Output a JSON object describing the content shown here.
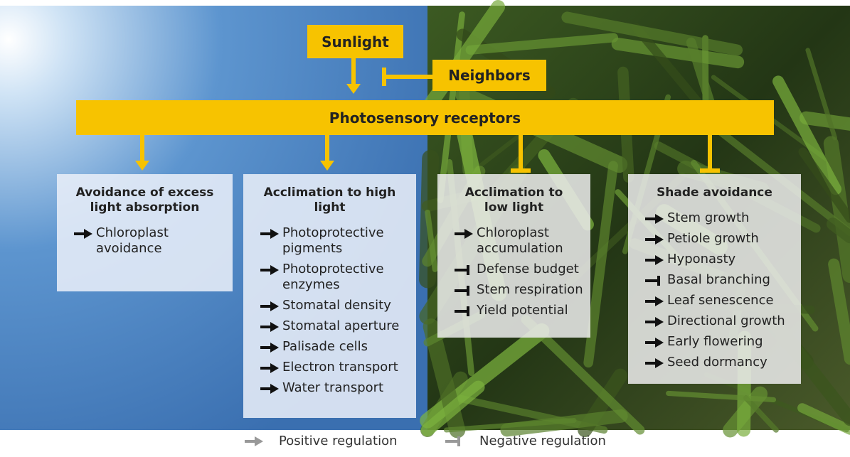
{
  "diagram": {
    "sources": [
      {
        "label": "Sunlight"
      },
      {
        "label": "Neighbors"
      }
    ],
    "receptors": {
      "label": "Photosensory receptors"
    },
    "boxes": [
      {
        "title": "Avoidance of excess light absorption",
        "regulation": 0,
        "items": [
          {
            "text": "Chloroplast avoidance",
            "regulation": 0
          }
        ]
      },
      {
        "title": "Acclimation to high light",
        "regulation": 0,
        "items": [
          {
            "text": "Photoprotective pigments",
            "regulation": 0
          },
          {
            "text": "Photoprotective enzymes",
            "regulation": 0
          },
          {
            "text": "Stomatal density",
            "regulation": 0
          },
          {
            "text": "Stomatal aperture",
            "regulation": 0
          },
          {
            "text": "Palisade cells",
            "regulation": 0
          },
          {
            "text": "Electron transport",
            "regulation": 0
          },
          {
            "text": "Water transport",
            "regulation": 0
          }
        ]
      },
      {
        "title": "Acclimation to low light",
        "regulation": 1,
        "items": [
          {
            "text": "Chloroplast accumulation",
            "regulation": 0
          },
          {
            "text": "Defense budget",
            "regulation": 1
          },
          {
            "text": "Stem respiration",
            "regulation": 1
          },
          {
            "text": "Yield potential",
            "regulation": 1
          }
        ]
      },
      {
        "title": "Shade avoidance",
        "regulation": 1,
        "items": [
          {
            "text": "Stem growth",
            "regulation": 0
          },
          {
            "text": "Petiole growth",
            "regulation": 0
          },
          {
            "text": "Hyponasty",
            "regulation": 0
          },
          {
            "text": "Basal branching",
            "regulation": 1
          },
          {
            "text": "Leaf senescence",
            "regulation": 0
          },
          {
            "text": "Directional growth",
            "regulation": 0
          },
          {
            "text": "Early flowering",
            "regulation": 0
          },
          {
            "text": "Seed dormancy",
            "regulation": 0
          }
        ]
      }
    ],
    "legend": [
      {
        "label": "Positive regulation"
      },
      {
        "label": "Negative regulation"
      }
    ]
  }
}
